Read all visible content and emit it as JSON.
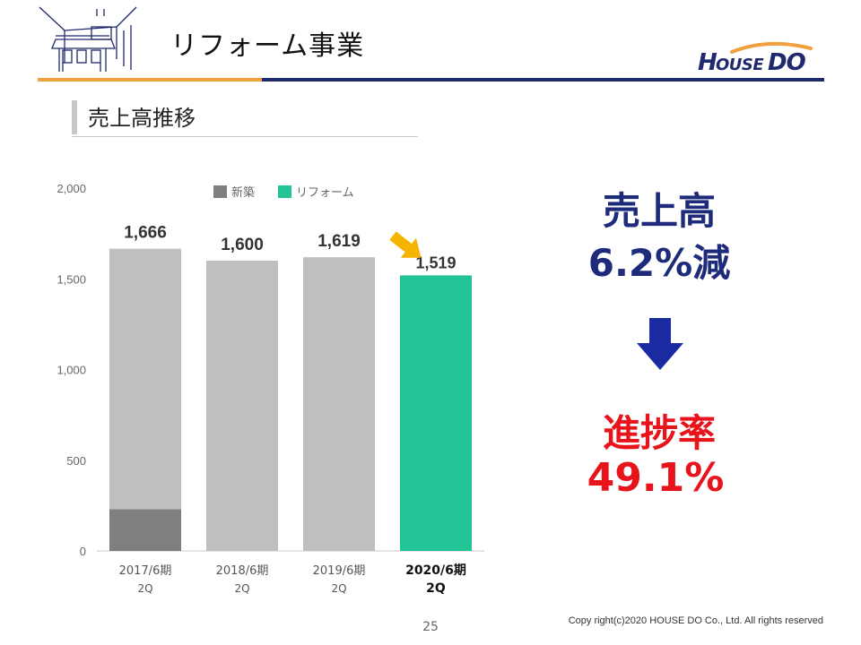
{
  "header": {
    "title": "リフォーム事業",
    "logo_text": "HOUSEDO",
    "colors": {
      "orange": "#f0a03c",
      "navy": "#1f2a6e"
    }
  },
  "section": {
    "title": "売上高推移"
  },
  "chart_data": {
    "type": "bar",
    "categories": [
      {
        "line1": "2017/6期",
        "line2": "2Q"
      },
      {
        "line1": "2018/6期",
        "line2": "2Q"
      },
      {
        "line1": "2019/6期",
        "line2": "2Q"
      },
      {
        "line1": "2020/6期",
        "line2": "2Q"
      }
    ],
    "series": [
      {
        "name": "新築",
        "color": "#7f7f7f",
        "values": [
          230,
          0,
          0,
          0
        ]
      },
      {
        "name": "リフォーム",
        "color": "#bfbfbf",
        "highlight_color": "#22c495",
        "values": [
          1436,
          1600,
          1619,
          1519
        ]
      }
    ],
    "totals": [
      1666,
      1600,
      1619,
      1519
    ],
    "total_labels": [
      "1,666",
      "1,600",
      "1,619",
      "1,519"
    ],
    "highlight_index": 3,
    "yticks": [
      "0",
      "500",
      "1,000",
      "1,500",
      "2,000"
    ],
    "ylim": [
      0,
      2000
    ],
    "legend_position": "top-center",
    "arrow_color": "#f5b400"
  },
  "kpi": {
    "sales_label": "売上高",
    "sales_value": "6.2%減",
    "progress_label": "進捗率",
    "progress_value": "49.1%",
    "arrow_color": "#1a2aa0"
  },
  "footer": {
    "page_number": "25",
    "copyright": "Copy right(c)2020  HOUSE DO Co., Ltd. All rights reserved"
  }
}
